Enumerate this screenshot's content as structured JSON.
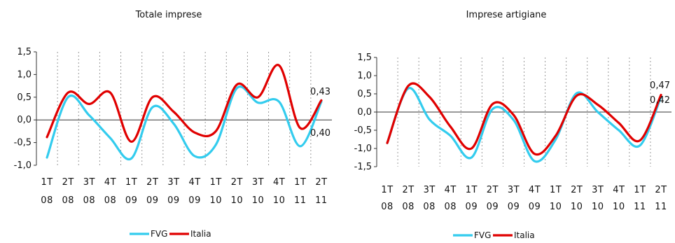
{
  "chart_data": [
    {
      "type": "line",
      "title": "Totale imprese",
      "xlabel": "",
      "ylabel": "",
      "ylim": [
        -1.0,
        1.5
      ],
      "yticks": [
        "1,5",
        "1,0",
        "0,5",
        "0,0",
        "-0,5",
        "-1,0"
      ],
      "categories": [
        "1T 08",
        "2T 08",
        "3T 08",
        "4T 08",
        "1T 09",
        "2T 09",
        "3T 09",
        "4T 09",
        "1T 10",
        "2T 10",
        "3T 10",
        "4T 10",
        "1T 11",
        "2T 11"
      ],
      "x_tick_lines": [
        [
          "1T",
          "2T",
          "3T",
          "4T",
          "1T",
          "2T",
          "3T",
          "4T",
          "1T",
          "2T",
          "3T",
          "4T",
          "1T",
          "2T"
        ],
        [
          "08",
          "08",
          "08",
          "08",
          "09",
          "09",
          "09",
          "09",
          "10",
          "10",
          "10",
          "10",
          "11",
          "11"
        ]
      ],
      "grid": true,
      "legend_position": "bottom",
      "series": [
        {
          "name": "FVG",
          "color": "#33ccee",
          "values": [
            -0.83,
            0.5,
            0.1,
            -0.4,
            -0.85,
            0.28,
            -0.08,
            -0.8,
            -0.55,
            0.7,
            0.38,
            0.4,
            -0.58,
            0.4
          ]
        },
        {
          "name": "Italia",
          "color": "#e00000",
          "values": [
            -0.38,
            0.6,
            0.35,
            0.6,
            -0.48,
            0.5,
            0.18,
            -0.28,
            -0.25,
            0.78,
            0.5,
            1.2,
            -0.18,
            0.43
          ]
        }
      ],
      "annotations": [
        "0,43",
        "0,40"
      ]
    },
    {
      "type": "line",
      "title": "Imprese artigiane",
      "xlabel": "",
      "ylabel": "",
      "ylim": [
        -1.5,
        1.5
      ],
      "yticks": [
        "1,5",
        "1,0",
        "0,5",
        "0,0",
        "-0,5",
        "-1,0",
        "-1,5"
      ],
      "categories": [
        "1T 08",
        "2T 08",
        "3T 08",
        "4T 08",
        "1T 09",
        "2T 09",
        "3T 09",
        "4T 09",
        "1T 10",
        "2T 10",
        "3T 10",
        "4T 10",
        "1T 11",
        "2T 11"
      ],
      "x_tick_lines": [
        [
          "1T",
          "2T",
          "3T",
          "4T",
          "1T",
          "2T",
          "3T",
          "4T",
          "1T",
          "2T",
          "3T",
          "4T",
          "1T",
          "2T"
        ],
        [
          "08",
          "08",
          "08",
          "08",
          "09",
          "09",
          "09",
          "09",
          "10",
          "10",
          "10",
          "10",
          "11",
          "11"
        ]
      ],
      "grid": true,
      "legend_position": "bottom",
      "series": [
        {
          "name": "FVG",
          "color": "#33ccee",
          "values": [
            -0.85,
            0.65,
            -0.2,
            -0.65,
            -1.25,
            0.08,
            -0.22,
            -1.35,
            -0.75,
            0.52,
            0.0,
            -0.5,
            -0.92,
            0.42
          ]
        },
        {
          "name": "Italia",
          "color": "#e00000",
          "values": [
            -0.85,
            0.72,
            0.42,
            -0.4,
            -1.0,
            0.22,
            -0.08,
            -1.15,
            -0.65,
            0.45,
            0.2,
            -0.3,
            -0.78,
            0.47
          ]
        }
      ],
      "annotations": [
        "0,47",
        "0,42"
      ]
    }
  ]
}
